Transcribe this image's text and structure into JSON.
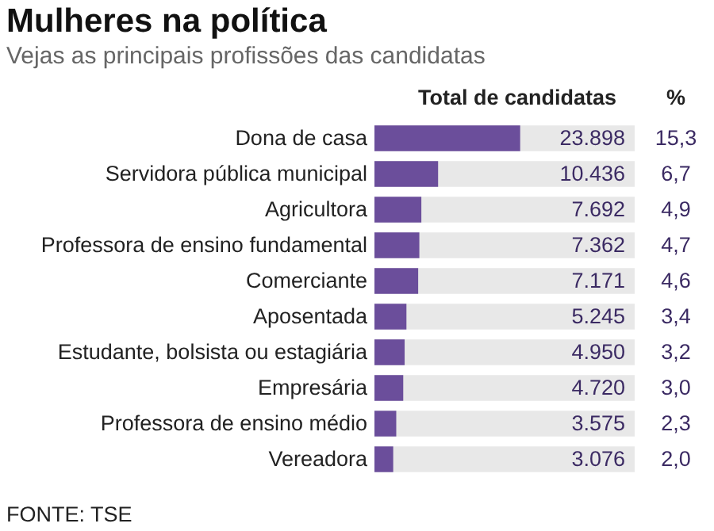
{
  "chart_data": {
    "type": "bar",
    "orientation": "horizontal",
    "title": "Mulheres na política",
    "subtitle": "Vejas as principais profissões das candidatas",
    "categories": [
      "Dona de casa",
      "Servidora pública municipal",
      "Agricultora",
      "Professora de ensino fundamental",
      "Comerciante",
      "Aposentada",
      "Estudante, bolsista ou estagiária",
      "Empresária",
      "Professora de ensino médio",
      "Vereadora"
    ],
    "values": [
      23898,
      10436,
      7692,
      7362,
      7171,
      5245,
      4950,
      4720,
      3575,
      3076
    ],
    "value_labels": [
      "23.898",
      "10.436",
      "7.692",
      "7.362",
      "7.171",
      "5.245",
      "4.950",
      "4.720",
      "3.575",
      "3.076"
    ],
    "color": "#6b4e9b",
    "annotations": [
      "Total de candidatas",
      "%",
      "FONTE: TSE",
      "15,3",
      "6,7",
      "4,9",
      "4,7",
      "4,6",
      "3,4",
      "3,2",
      "3,0",
      "2,3",
      "2,0"
    ]
  }
}
